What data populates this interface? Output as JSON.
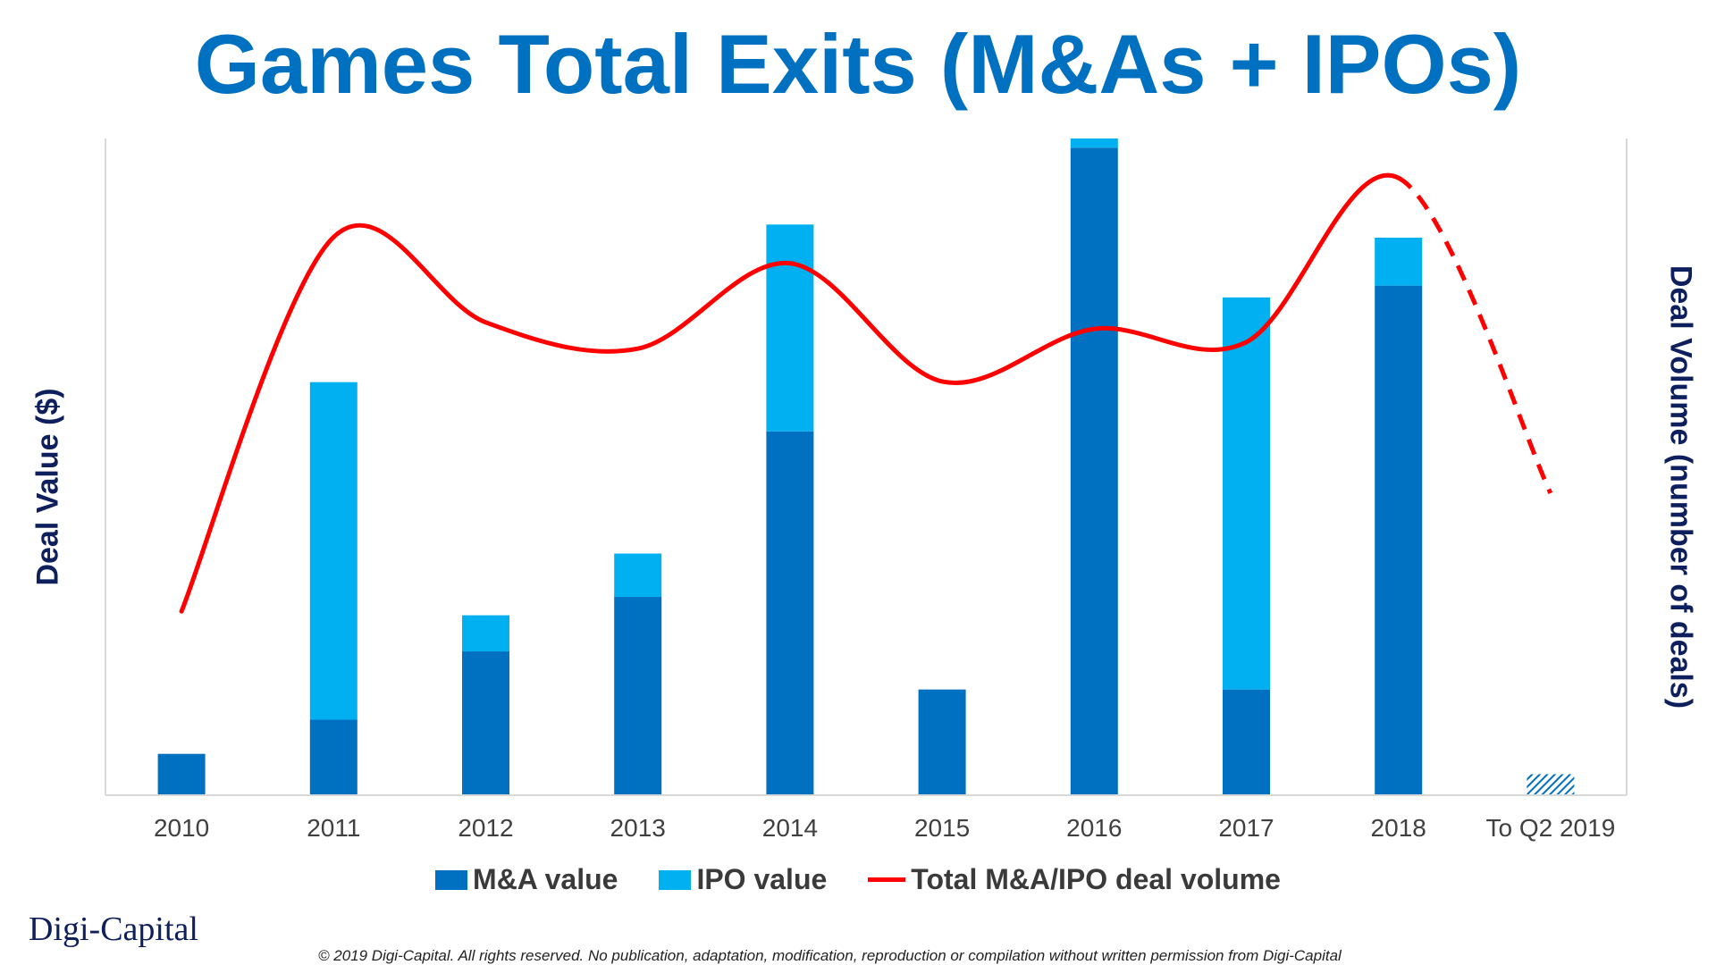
{
  "title": "Games Total Exits (M&As + IPOs)",
  "legend": {
    "ma": "M&A value",
    "ipo": "IPO value",
    "volume": "Total M&A/IPO deal volume"
  },
  "logo": "Digi-Capital",
  "copyright": "© 2019 Digi-Capital. All rights reserved. No publication, adaptation, modification, reproduction or compilation without written permission from Digi-Capital",
  "colors": {
    "ma": "#0070c0",
    "ipo": "#00b0f0",
    "volume": "#ff0000",
    "title": "#0070c0",
    "axis_title": "#0d1f5c"
  },
  "chart_data": {
    "type": "bar",
    "stacked": true,
    "categories": [
      "2010",
      "2011",
      "2012",
      "2013",
      "2014",
      "2015",
      "2016",
      "2017",
      "2018",
      "To Q2 2019"
    ],
    "ylabel": "Deal Value ($)",
    "y2label": "Deal Volume (number of deals)",
    "ylim": [
      0,
      100
    ],
    "y2lim": [
      0,
      100
    ],
    "series": [
      {
        "name": "M&A value",
        "kind": "bar",
        "values": [
          6.3,
          11.5,
          21.9,
          30.2,
          55.4,
          16.1,
          98.6,
          16.1,
          77.6,
          3.2
        ],
        "hatched_last": true
      },
      {
        "name": "IPO value",
        "kind": "bar",
        "values": [
          0,
          51.4,
          5.5,
          6.6,
          31.5,
          0,
          1.4,
          59.7,
          7.3,
          0
        ]
      },
      {
        "name": "Total M&A/IPO deal volume",
        "kind": "line",
        "axis": "right",
        "values": [
          28,
          85,
          72,
          68,
          81,
          63,
          71,
          69,
          94,
          46
        ],
        "projected_last": true
      }
    ],
    "grid": false
  }
}
